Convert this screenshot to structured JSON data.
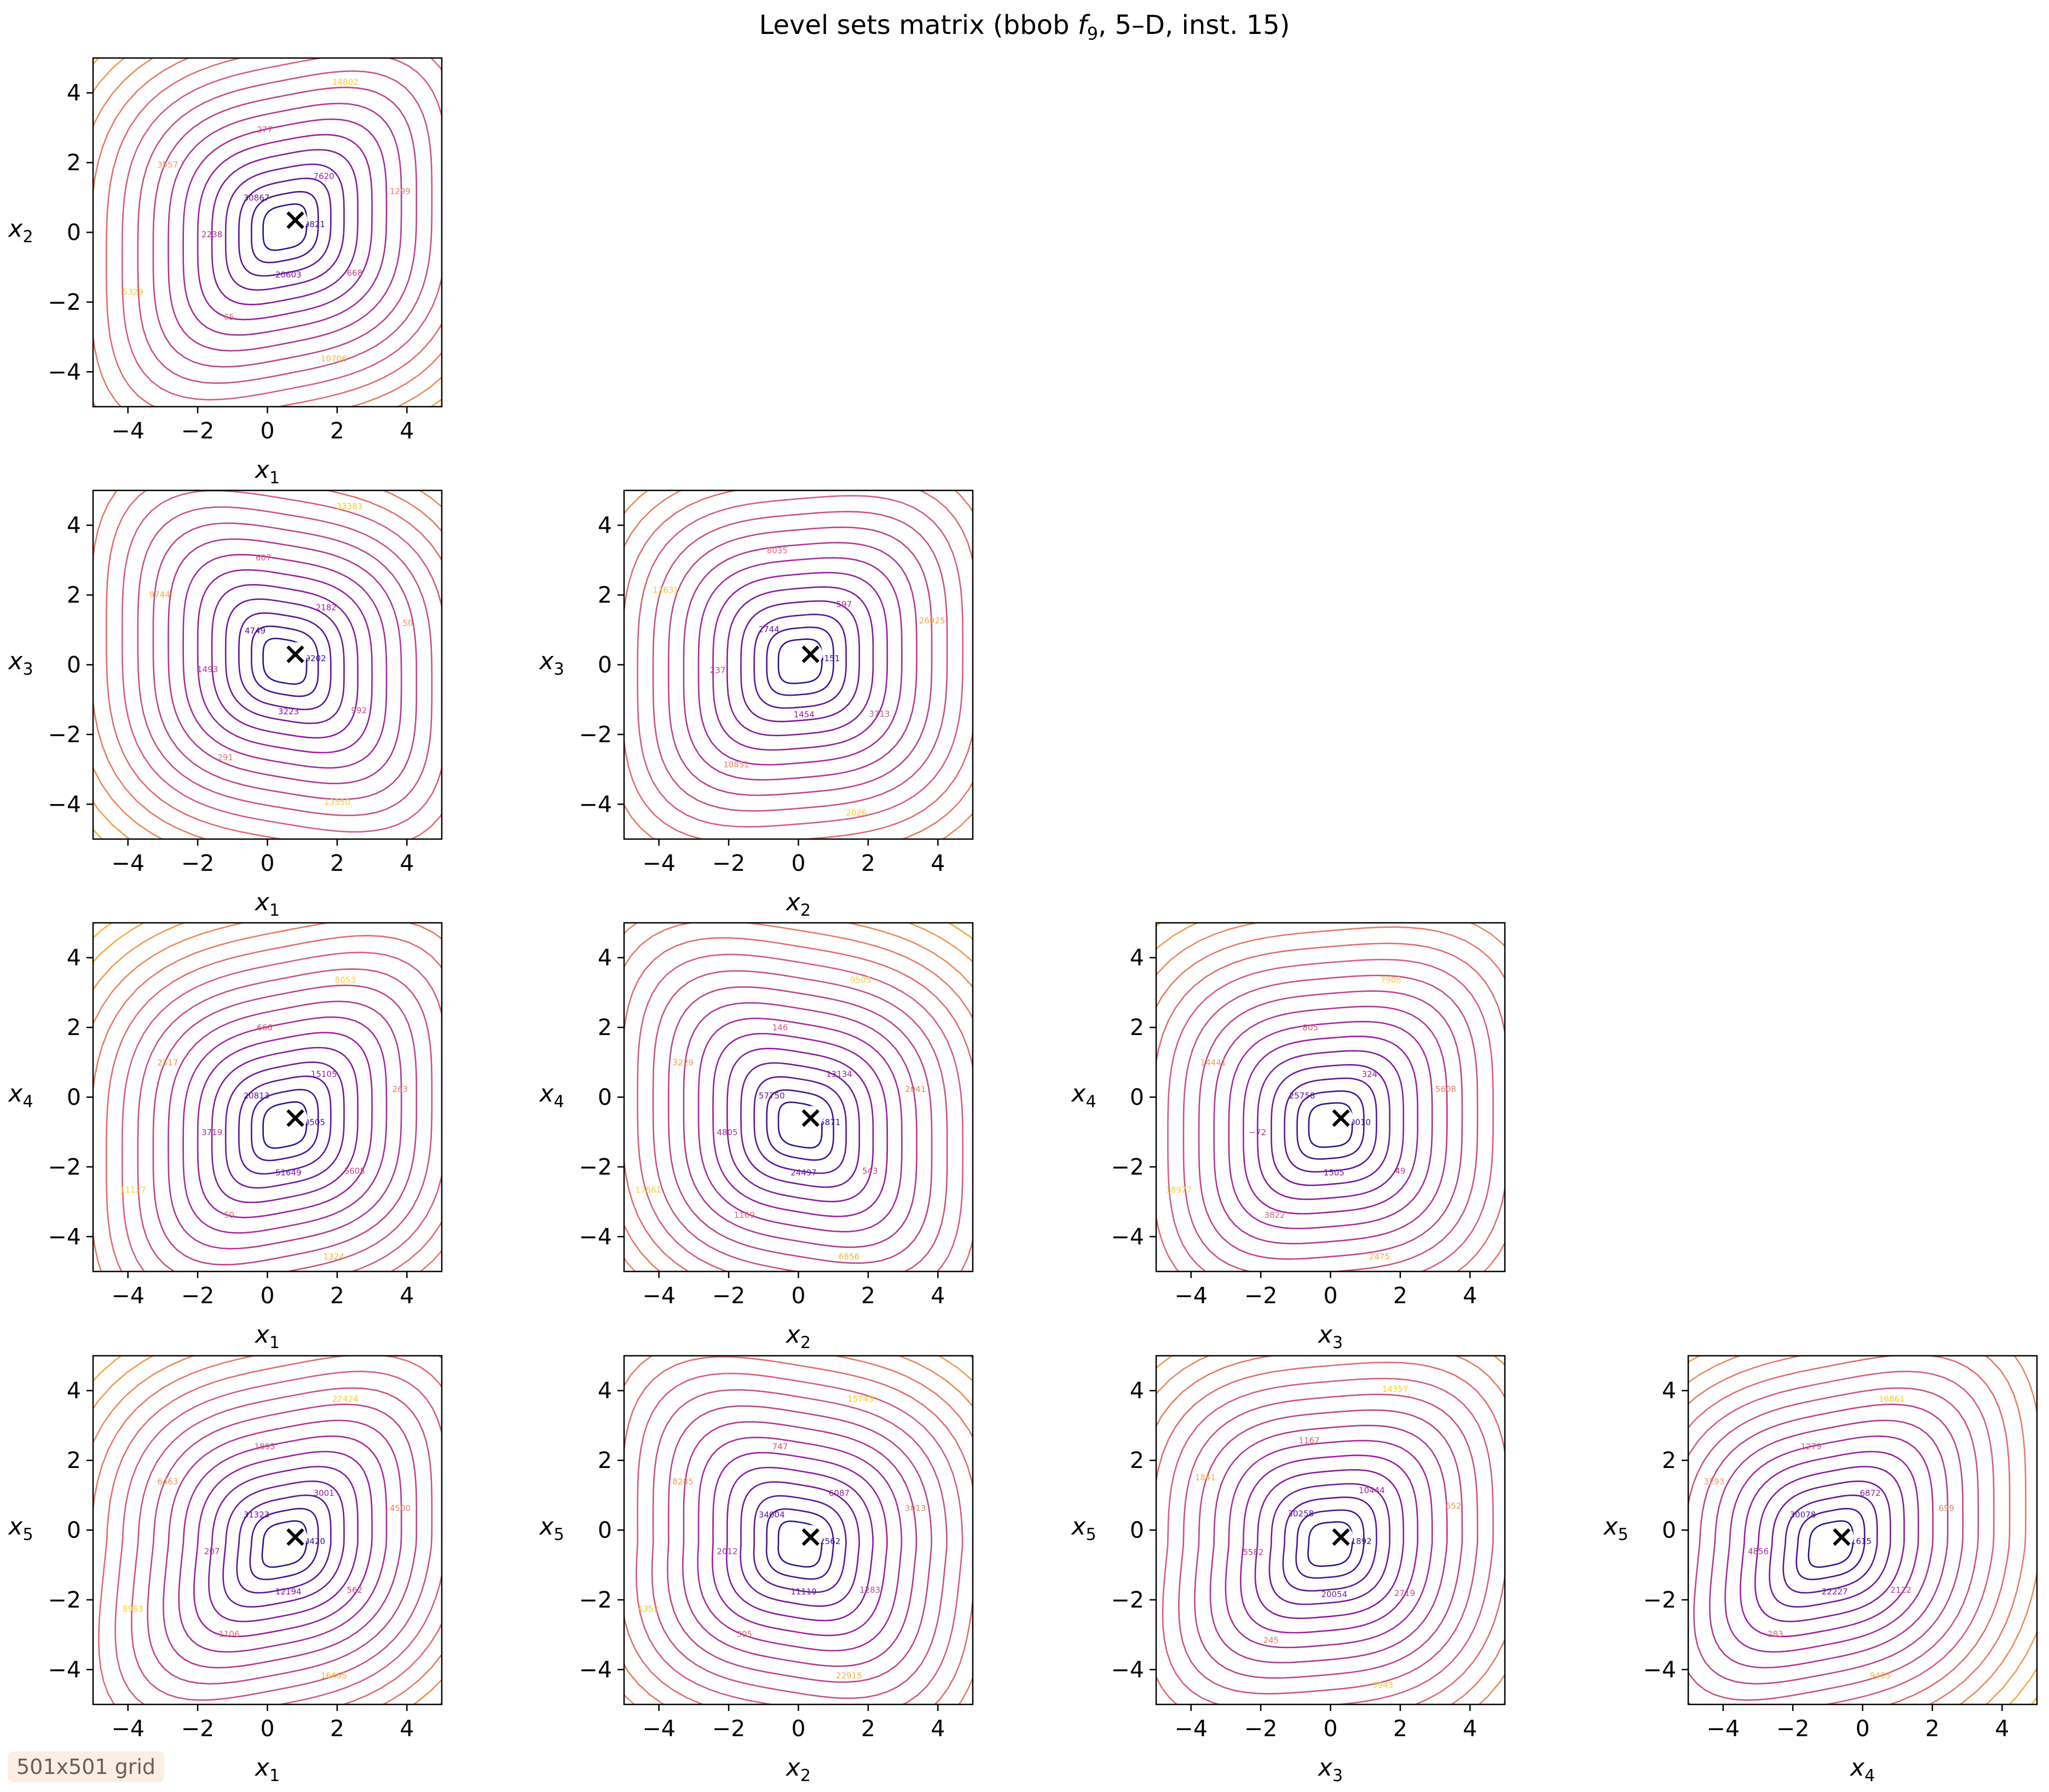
{
  "figure": {
    "title": "Level sets matrix (bbob f9, 5–D, inst. 15)",
    "grid_note": "501x501 grid"
  },
  "colors": {
    "low": "#1d0b8c",
    "mid": "#9c1ea0",
    "high": "#e06a72",
    "top": "#fbcd2c",
    "marker": "#000000"
  },
  "chart_data": [
    {
      "type": "contour",
      "xlabel": "x1",
      "ylabel": "x2",
      "xlim": [
        -5,
        5
      ],
      "ylim": [
        -5,
        5
      ],
      "xticks": [
        -4,
        -2,
        0,
        2,
        4
      ],
      "yticks": [
        -4,
        -2,
        0,
        2,
        4
      ],
      "optimum": [
        0.8,
        0.35
      ],
      "level_labels": [
        "49821",
        "30867",
        "20603",
        "7620",
        "2238",
        "668",
        "277",
        "65",
        "1299",
        "3557",
        "10706",
        "14802",
        "5329"
      ]
    },
    {
      "type": "contour",
      "xlabel": "x1",
      "ylabel": "x3",
      "xlim": [
        -5,
        5
      ],
      "ylim": [
        -5,
        5
      ],
      "xticks": [
        -4,
        -2,
        0,
        2,
        4
      ],
      "yticks": [
        -4,
        -2,
        0,
        2,
        4
      ],
      "optimum": [
        0.8,
        0.3
      ],
      "level_labels": [
        "19202",
        "4749",
        "3223",
        "2182",
        "1493",
        "992",
        "607",
        "291",
        "50",
        "9744",
        "13550",
        "33383"
      ]
    },
    {
      "type": "contour",
      "xlabel": "x2",
      "ylabel": "x3",
      "xlim": [
        -5,
        5
      ],
      "ylim": [
        -5,
        5
      ],
      "xticks": [
        -4,
        -2,
        0,
        2,
        4
      ],
      "yticks": [
        -4,
        -2,
        0,
        2,
        4
      ],
      "optimum": [
        0.35,
        0.3
      ],
      "level_labels": [
        "5151",
        "2744",
        "1454",
        "597",
        "237",
        "3713",
        "8035",
        "18851",
        "26925",
        "12631",
        "2026"
      ]
    },
    {
      "type": "contour",
      "xlabel": "x1",
      "ylabel": "x4",
      "xlim": [
        -5,
        5
      ],
      "ylim": [
        -5,
        5
      ],
      "xticks": [
        -4,
        -2,
        0,
        2,
        4
      ],
      "yticks": [
        -4,
        -2,
        0,
        2,
        4
      ],
      "optimum": [
        0.8,
        -0.6
      ],
      "level_labels": [
        "30505",
        "20813",
        "51649",
        "15105",
        "3719",
        "5605",
        "666",
        "50",
        "263",
        "2317",
        "1324",
        "8053",
        "11127"
      ]
    },
    {
      "type": "contour",
      "xlabel": "x2",
      "ylabel": "x4",
      "xlim": [
        -5,
        5
      ],
      "ylim": [
        -5,
        5
      ],
      "xticks": [
        -4,
        -2,
        0,
        2,
        4
      ],
      "yticks": [
        -4,
        -2,
        0,
        2,
        4
      ],
      "optimum": [
        0.35,
        -0.6
      ],
      "level_labels": [
        "35871",
        "57750",
        "24497",
        "13134",
        "4805",
        "543",
        "146",
        "1169",
        "2041",
        "3229",
        "6856",
        "9505",
        "17861"
      ]
    },
    {
      "type": "contour",
      "xlabel": "x3",
      "ylabel": "x4",
      "xlim": [
        -5,
        5
      ],
      "ylim": [
        -5,
        5
      ],
      "xticks": [
        -4,
        -2,
        0,
        2,
        4
      ],
      "yticks": [
        -4,
        -2,
        0,
        2,
        4
      ],
      "optimum": [
        0.3,
        -0.6
      ],
      "level_labels": [
        "40010",
        "25758",
        "1505",
        "324",
        "−72",
        "49",
        "805",
        "3822",
        "5608",
        "14441",
        "2475",
        "7908",
        "18977"
      ]
    },
    {
      "type": "contour",
      "xlabel": "x1",
      "ylabel": "x5",
      "xlim": [
        -5,
        5
      ],
      "ylim": [
        -5,
        5
      ],
      "xticks": [
        -4,
        -2,
        0,
        2,
        4
      ],
      "yticks": [
        -4,
        -2,
        0,
        2,
        4
      ],
      "optimum": [
        0.8,
        -0.2
      ],
      "level_labels": [
        "50420",
        "31323",
        "12194",
        "3001",
        "207",
        "562",
        "1895",
        "1106",
        "4500",
        "6463",
        "16465",
        "22424",
        "8963"
      ]
    },
    {
      "type": "contour",
      "xlabel": "x2",
      "ylabel": "x5",
      "xlim": [
        -5,
        5
      ],
      "ylim": [
        -5,
        5
      ],
      "xticks": [
        -4,
        -2,
        0,
        2,
        4
      ],
      "yticks": [
        -4,
        -2,
        0,
        2,
        4
      ],
      "optimum": [
        0.35,
        -0.2
      ],
      "level_labels": [
        "52562",
        "34004",
        "11119",
        "6087",
        "2012",
        "1283",
        "747",
        "305",
        "3013",
        "8285",
        "22915",
        "15743",
        "4352"
      ]
    },
    {
      "type": "contour",
      "xlabel": "x3",
      "ylabel": "x5",
      "xlim": [
        -5,
        5
      ],
      "ylim": [
        -5,
        5
      ],
      "xticks": [
        -4,
        -2,
        0,
        2,
        4
      ],
      "yticks": [
        -4,
        -2,
        0,
        2,
        4
      ],
      "optimum": [
        0.3,
        -0.2
      ],
      "level_labels": [
        "51892",
        "30258",
        "20054",
        "10444",
        "5582",
        "2719",
        "1167",
        "245",
        "652",
        "1841",
        "3943",
        "14357"
      ]
    },
    {
      "type": "contour",
      "xlabel": "x4",
      "ylabel": "x5",
      "xlim": [
        -5,
        5
      ],
      "ylim": [
        -5,
        5
      ],
      "xticks": [
        -4,
        -2,
        0,
        2,
        4
      ],
      "yticks": [
        -4,
        -2,
        0,
        2,
        4
      ],
      "optimum": [
        -0.6,
        -0.2
      ],
      "level_labels": [
        "51615",
        "30078",
        "22227",
        "6872",
        "4856",
        "2122",
        "1279",
        "283",
        "699",
        "3293",
        "9405",
        "16861",
        "12644"
      ]
    }
  ]
}
